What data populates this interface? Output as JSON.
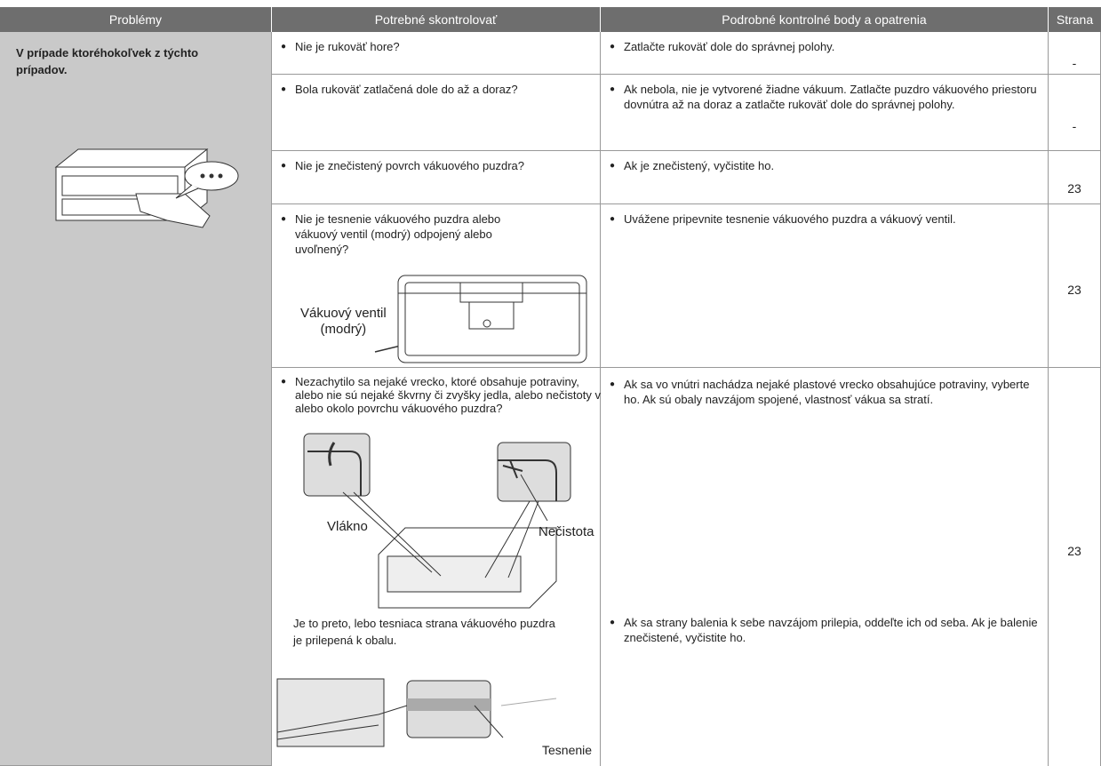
{
  "table": {
    "headers": [
      "Problémy",
      "Potrebné skontrolovať",
      "Podrobné kontrolné body a opatrenia",
      "Strana"
    ],
    "problem": "V prípade ktoréhokoľvek z týchto prípadov.",
    "rows": [
      {
        "check": "Nie je rukoväť hore?",
        "actions": [
          "Zatlačte rukoväť dole do správnej polohy."
        ],
        "page": "-"
      },
      {
        "check": "Bola rukoväť zatlačená dole do až a doraz?",
        "actions": [
          "Ak nebola, nie je vytvorené žiadne vákuum. Zatlačte puzdro vákuového priestoru dovnútra až na doraz a zatlačte rukoväť dole do správnej polohy."
        ],
        "page": "-"
      },
      {
        "check": "Nie je znečistený povrch vákuového puzdra?",
        "actions": [
          "Ak je znečistený, vyčistite ho."
        ],
        "page": 23
      },
      {
        "check": "Nie je tesnenie vákuového puzdra alebo vákuový ventil (modrý) odpojený alebo uvoľnený?",
        "callout": [
          "Vákuový ventil",
          "(modrý)"
        ],
        "actions": [
          "Uvážene pripevnite tesnenie vákuového puzdra a vákuový ventil."
        ],
        "page": 23
      },
      {
        "check": "Nezachytilo sa nejaké vrecko, ktoré obsahuje potraviny, alebo nie sú nejaké škvrny či zvyšky jedla, alebo nečistoty v alebo okolo povrchu vákuového puzdra?",
        "labels": [
          "Vlákno",
          "Nečistota"
        ],
        "note": "Je to preto, lebo tesniaca strana vákuového puzdra je prilepená k obalu.",
        "seal_label": "Tesnenie",
        "actions": [
          "Ak sa vo vnútri nachádza nejaké plastové vrecko obsahujúce potraviny, vyberte ho. Ak sú obaly navzájom spojené, vlastnosť vákua sa stratí.",
          "Ak sa strany balenia k sebe navzájom prilepia, oddeľte ich od seba. Ak je balenie znečistené, vyčistite ho."
        ],
        "page": 23
      }
    ]
  }
}
